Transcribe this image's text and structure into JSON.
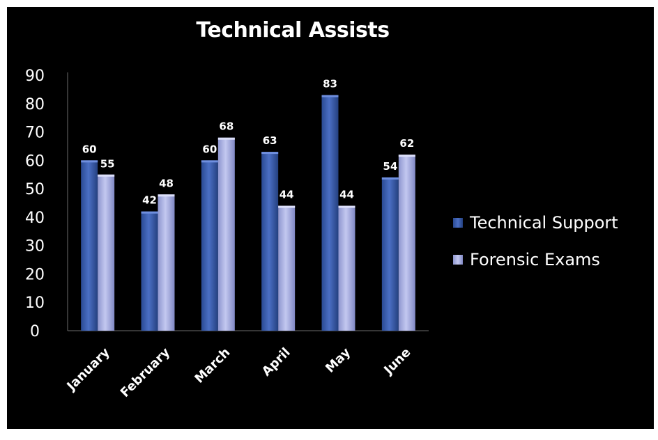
{
  "chart_data": {
    "type": "bar",
    "title": "Technical Assists",
    "categories": [
      "January",
      "February",
      "March",
      "April",
      "May",
      "June"
    ],
    "series": [
      {
        "name": "Technical Support",
        "values": [
          60,
          42,
          60,
          63,
          83,
          54
        ],
        "color": "#3d5fb0"
      },
      {
        "name": "Forensic Exams",
        "values": [
          55,
          48,
          68,
          44,
          44,
          62
        ],
        "color": "#a9b0e3"
      }
    ],
    "yticks": [
      "0",
      "10",
      "20",
      "30",
      "40",
      "50",
      "60",
      "70",
      "80",
      "90"
    ],
    "ylim": [
      0,
      90
    ],
    "data_labels": true,
    "legend_position": "right",
    "grid": false
  }
}
